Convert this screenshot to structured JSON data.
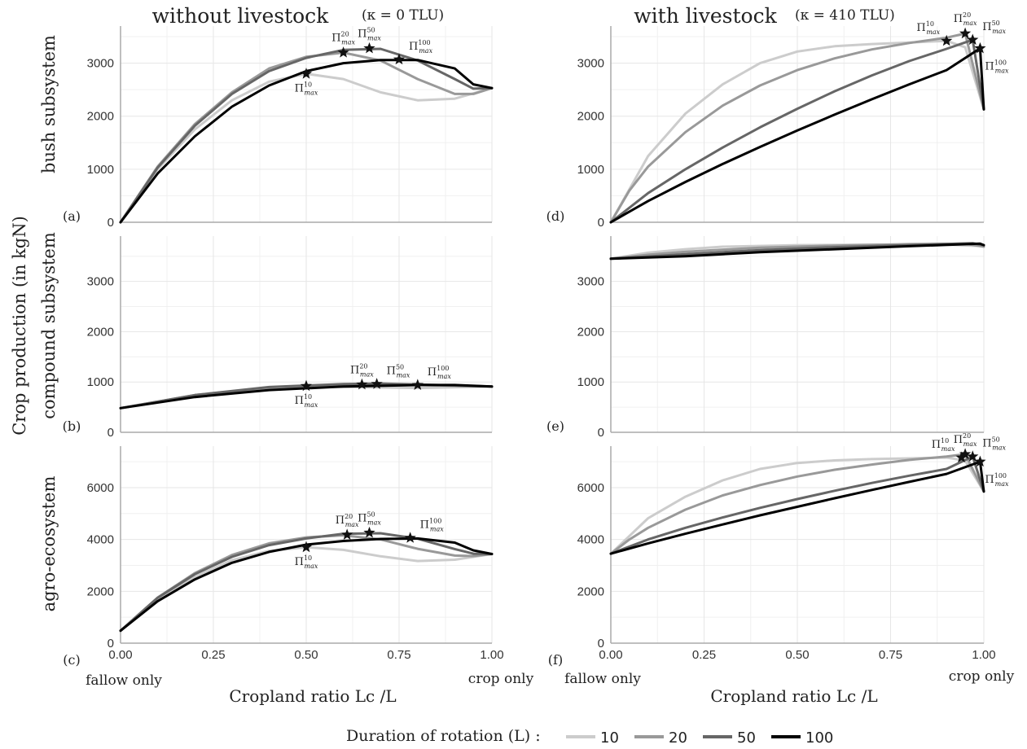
{
  "figure": {
    "col_titles": [
      {
        "text": "without livestock",
        "param": "(κ = 0 TLU)"
      },
      {
        "text": "with livestock",
        "param": "(κ = 410 TLU)"
      }
    ],
    "row_labels": [
      "bush subsystem",
      "compound subsystem",
      "agro-ecosystem"
    ],
    "ylabel": "Crop production (in kgN)",
    "xlabel": "Cropland ratio  Lc /L",
    "x_left_note": "fallow only",
    "x_right_note": "crop only",
    "legend_title": "Duration of rotation (L) :",
    "series_colors": {
      "10": "#cccccc",
      "20": "#999999",
      "50": "#666666",
      "100": "#000000"
    },
    "grid_color": "#e6e6e6",
    "axis_color": "#aaaaaa"
  },
  "legend": [
    {
      "label": "10",
      "color": "#cccccc"
    },
    {
      "label": "20",
      "color": "#999999"
    },
    {
      "label": "50",
      "color": "#666666"
    },
    {
      "label": "100",
      "color": "#000000"
    }
  ],
  "chart_data": [
    {
      "type": "line",
      "panel": "(a)",
      "xlim": [
        0,
        1
      ],
      "ylim": [
        0,
        3700
      ],
      "xticks": [
        "0.00",
        "0.25",
        "0.50",
        "0.75",
        "1.00"
      ],
      "yticks": [
        0,
        1000,
        2000,
        3000
      ],
      "show_xticks": false,
      "series": [
        {
          "name": "10",
          "color": "#cccccc",
          "x": [
            0,
            0.1,
            0.2,
            0.3,
            0.4,
            0.5,
            0.6,
            0.7,
            0.8,
            0.9,
            1
          ],
          "y": [
            0,
            1000,
            1750,
            2300,
            2650,
            2800,
            2700,
            2450,
            2300,
            2330,
            2530
          ]
        },
        {
          "name": "20",
          "color": "#999999",
          "x": [
            0,
            0.1,
            0.2,
            0.3,
            0.4,
            0.5,
            0.6,
            0.7,
            0.8,
            0.9,
            0.95,
            1
          ],
          "y": [
            0,
            1050,
            1850,
            2450,
            2900,
            3120,
            3200,
            3050,
            2700,
            2420,
            2420,
            2530
          ]
        },
        {
          "name": "50",
          "color": "#666666",
          "x": [
            0,
            0.1,
            0.2,
            0.3,
            0.4,
            0.5,
            0.6,
            0.7,
            0.8,
            0.9,
            0.95,
            1
          ],
          "y": [
            0,
            1030,
            1820,
            2420,
            2850,
            3100,
            3250,
            3270,
            3050,
            2700,
            2520,
            2530
          ]
        },
        {
          "name": "100",
          "color": "#000000",
          "x": [
            0,
            0.1,
            0.2,
            0.3,
            0.4,
            0.5,
            0.6,
            0.7,
            0.8,
            0.9,
            0.95,
            1
          ],
          "y": [
            0,
            920,
            1620,
            2180,
            2580,
            2850,
            3000,
            3060,
            3060,
            2900,
            2600,
            2530
          ]
        }
      ],
      "markers": [
        {
          "label": "Π",
          "sup": "10",
          "sub": "max",
          "x": 0.5,
          "y": 2800,
          "pos": "below"
        },
        {
          "label": "Π",
          "sup": "20",
          "sub": "max",
          "x": 0.6,
          "y": 3200,
          "pos": "above"
        },
        {
          "label": "Π",
          "sup": "50",
          "sub": "max",
          "x": 0.67,
          "y": 3280,
          "pos": "above"
        },
        {
          "label": "Π",
          "sup": "100",
          "sub": "max",
          "x": 0.75,
          "y": 3070,
          "pos": "aboveright"
        }
      ]
    },
    {
      "type": "line",
      "panel": "(b)",
      "xlim": [
        0,
        1
      ],
      "ylim": [
        0,
        3900
      ],
      "xticks": [
        "0.00",
        "0.25",
        "0.50",
        "0.75",
        "1.00"
      ],
      "yticks": [
        0,
        1000,
        2000,
        3000
      ],
      "show_xticks": false,
      "series": [
        {
          "name": "10",
          "color": "#cccccc",
          "x": [
            0,
            0.2,
            0.4,
            0.5,
            0.6,
            0.8,
            1
          ],
          "y": [
            480,
            720,
            870,
            920,
            900,
            880,
            910
          ]
        },
        {
          "name": "20",
          "color": "#999999",
          "x": [
            0,
            0.2,
            0.4,
            0.6,
            0.8,
            1
          ],
          "y": [
            480,
            740,
            890,
            950,
            940,
            910
          ]
        },
        {
          "name": "50",
          "color": "#666666",
          "x": [
            0,
            0.2,
            0.4,
            0.6,
            0.7,
            0.8,
            1
          ],
          "y": [
            480,
            740,
            900,
            960,
            970,
            950,
            910
          ]
        },
        {
          "name": "100",
          "color": "#000000",
          "x": [
            0,
            0.2,
            0.4,
            0.6,
            0.8,
            0.9,
            1
          ],
          "y": [
            480,
            700,
            840,
            910,
            940,
            940,
            910
          ]
        }
      ],
      "markers": [
        {
          "label": "Π",
          "sup": "10",
          "sub": "max",
          "x": 0.5,
          "y": 920,
          "pos": "below"
        },
        {
          "label": "Π",
          "sup": "20",
          "sub": "max",
          "x": 0.65,
          "y": 950,
          "pos": "above"
        },
        {
          "label": "Π",
          "sup": "50",
          "sub": "max",
          "x": 0.69,
          "y": 960,
          "pos": "aboveright"
        },
        {
          "label": "Π",
          "sup": "100",
          "sub": "max",
          "x": 0.8,
          "y": 940,
          "pos": "aboveright"
        }
      ]
    },
    {
      "type": "line",
      "panel": "(c)",
      "xlim": [
        0,
        1
      ],
      "ylim": [
        0,
        7600
      ],
      "xticks": [
        "0.00",
        "0.25",
        "0.50",
        "0.75",
        "1.00"
      ],
      "yticks": [
        0,
        2000,
        4000,
        6000
      ],
      "show_xticks": true,
      "series": [
        {
          "name": "10",
          "color": "#cccccc",
          "x": [
            0,
            0.1,
            0.2,
            0.3,
            0.4,
            0.5,
            0.6,
            0.7,
            0.8,
            0.9,
            1
          ],
          "y": [
            480,
            1700,
            2550,
            3200,
            3560,
            3700,
            3600,
            3350,
            3170,
            3220,
            3440
          ]
        },
        {
          "name": "20",
          "color": "#999999",
          "x": [
            0,
            0.1,
            0.2,
            0.3,
            0.4,
            0.5,
            0.6,
            0.7,
            0.8,
            0.9,
            0.95,
            1
          ],
          "y": [
            480,
            1760,
            2700,
            3400,
            3850,
            4080,
            4160,
            4000,
            3640,
            3380,
            3360,
            3440
          ]
        },
        {
          "name": "50",
          "color": "#666666",
          "x": [
            0,
            0.1,
            0.2,
            0.3,
            0.4,
            0.5,
            0.6,
            0.7,
            0.8,
            0.9,
            0.95,
            1
          ],
          "y": [
            480,
            1750,
            2660,
            3330,
            3780,
            4040,
            4220,
            4240,
            4030,
            3630,
            3450,
            3440
          ]
        },
        {
          "name": "100",
          "color": "#000000",
          "x": [
            0,
            0.1,
            0.2,
            0.3,
            0.4,
            0.5,
            0.6,
            0.7,
            0.8,
            0.9,
            0.95,
            1
          ],
          "y": [
            480,
            1620,
            2460,
            3100,
            3520,
            3800,
            3940,
            4020,
            4040,
            3880,
            3580,
            3440
          ]
        }
      ],
      "markers": [
        {
          "label": "Π",
          "sup": "10",
          "sub": "max",
          "x": 0.5,
          "y": 3700,
          "pos": "below"
        },
        {
          "label": "Π",
          "sup": "20",
          "sub": "max",
          "x": 0.61,
          "y": 4180,
          "pos": "above"
        },
        {
          "label": "Π",
          "sup": "50",
          "sub": "max",
          "x": 0.67,
          "y": 4260,
          "pos": "above"
        },
        {
          "label": "Π",
          "sup": "100",
          "sub": "max",
          "x": 0.78,
          "y": 4060,
          "pos": "aboveright"
        }
      ]
    },
    {
      "type": "line",
      "panel": "(d)",
      "xlim": [
        0,
        1
      ],
      "ylim": [
        0,
        3700
      ],
      "xticks": [
        "0.00",
        "0.25",
        "0.50",
        "0.75",
        "1.00"
      ],
      "yticks": [
        0,
        1000,
        2000,
        3000
      ],
      "show_xticks": false,
      "series": [
        {
          "name": "10",
          "color": "#cccccc",
          "x": [
            0,
            0.1,
            0.2,
            0.3,
            0.4,
            0.5,
            0.6,
            0.7,
            0.8,
            0.9,
            0.95,
            1
          ],
          "y": [
            0,
            1250,
            2050,
            2600,
            3000,
            3220,
            3320,
            3360,
            3390,
            3420,
            3300,
            2130
          ]
        },
        {
          "name": "20",
          "color": "#999999",
          "x": [
            0,
            0.05,
            0.1,
            0.2,
            0.3,
            0.4,
            0.5,
            0.6,
            0.7,
            0.8,
            0.9,
            0.95,
            1
          ],
          "y": [
            0,
            600,
            1050,
            1700,
            2200,
            2580,
            2870,
            3090,
            3260,
            3380,
            3480,
            3560,
            2130
          ]
        },
        {
          "name": "50",
          "color": "#666666",
          "x": [
            0,
            0.1,
            0.2,
            0.3,
            0.4,
            0.5,
            0.6,
            0.7,
            0.8,
            0.9,
            0.97,
            1
          ],
          "y": [
            0,
            550,
            1000,
            1410,
            1790,
            2140,
            2470,
            2770,
            3040,
            3270,
            3440,
            2130
          ]
        },
        {
          "name": "100",
          "color": "#000000",
          "x": [
            0,
            0.1,
            0.2,
            0.3,
            0.4,
            0.5,
            0.6,
            0.7,
            0.8,
            0.9,
            0.99,
            1
          ],
          "y": [
            0,
            400,
            760,
            1100,
            1420,
            1730,
            2030,
            2320,
            2600,
            2870,
            3280,
            2130
          ]
        }
      ],
      "markers": [
        {
          "label": "Π",
          "sup": "10",
          "sub": "max",
          "x": 0.9,
          "y": 3420,
          "pos": "aboveleft"
        },
        {
          "label": "Π",
          "sup": "20",
          "sub": "max",
          "x": 0.95,
          "y": 3560,
          "pos": "above"
        },
        {
          "label": "Π",
          "sup": "50",
          "sub": "max",
          "x": 0.97,
          "y": 3440,
          "pos": "aboveright"
        },
        {
          "label": "Π",
          "sup": "100",
          "sub": "max",
          "x": 0.99,
          "y": 3280,
          "pos": "belowright"
        }
      ]
    },
    {
      "type": "line",
      "panel": "(e)",
      "xlim": [
        0,
        1
      ],
      "ylim": [
        0,
        3900
      ],
      "xticks": [
        "0.00",
        "0.25",
        "0.50",
        "0.75",
        "1.00"
      ],
      "yticks": [
        0,
        1000,
        2000,
        3000
      ],
      "show_xticks": false,
      "series": [
        {
          "name": "10",
          "color": "#cccccc",
          "x": [
            0,
            0.1,
            0.2,
            0.3,
            0.5,
            0.7,
            0.9,
            1
          ],
          "y": [
            3450,
            3570,
            3640,
            3690,
            3720,
            3730,
            3730,
            3700
          ]
        },
        {
          "name": "20",
          "color": "#999999",
          "x": [
            0,
            0.1,
            0.2,
            0.4,
            0.6,
            0.8,
            0.95,
            1
          ],
          "y": [
            3450,
            3530,
            3590,
            3670,
            3710,
            3740,
            3750,
            3690
          ]
        },
        {
          "name": "50",
          "color": "#666666",
          "x": [
            0,
            0.2,
            0.4,
            0.6,
            0.8,
            0.97,
            1
          ],
          "y": [
            3450,
            3540,
            3620,
            3680,
            3720,
            3760,
            3720
          ]
        },
        {
          "name": "100",
          "color": "#000000",
          "x": [
            0,
            0.2,
            0.4,
            0.6,
            0.8,
            0.99,
            1
          ],
          "y": [
            3450,
            3500,
            3580,
            3640,
            3700,
            3750,
            3720
          ]
        }
      ],
      "markers": []
    },
    {
      "type": "line",
      "panel": "(f)",
      "xlim": [
        0,
        1
      ],
      "ylim": [
        0,
        7600
      ],
      "xticks": [
        "0.00",
        "0.25",
        "0.50",
        "0.75",
        "1.00"
      ],
      "yticks": [
        0,
        2000,
        4000,
        6000
      ],
      "show_xticks": true,
      "series": [
        {
          "name": "10",
          "color": "#cccccc",
          "x": [
            0,
            0.1,
            0.2,
            0.3,
            0.4,
            0.5,
            0.6,
            0.7,
            0.8,
            0.9,
            0.95,
            1
          ],
          "y": [
            3450,
            4820,
            5650,
            6280,
            6720,
            6950,
            7050,
            7100,
            7130,
            7160,
            7040,
            5850
          ]
        },
        {
          "name": "20",
          "color": "#999999",
          "x": [
            0,
            0.05,
            0.1,
            0.2,
            0.3,
            0.4,
            0.5,
            0.6,
            0.7,
            0.8,
            0.9,
            0.95,
            1
          ],
          "y": [
            3450,
            4000,
            4450,
            5150,
            5700,
            6100,
            6430,
            6690,
            6890,
            7070,
            7200,
            7290,
            5850
          ]
        },
        {
          "name": "50",
          "color": "#666666",
          "x": [
            0,
            0.1,
            0.2,
            0.3,
            0.4,
            0.5,
            0.6,
            0.7,
            0.8,
            0.9,
            0.97,
            1
          ],
          "y": [
            3450,
            4000,
            4450,
            4850,
            5220,
            5560,
            5880,
            6180,
            6460,
            6720,
            7200,
            5850
          ]
        },
        {
          "name": "100",
          "color": "#000000",
          "x": [
            0,
            0.1,
            0.2,
            0.3,
            0.4,
            0.5,
            0.6,
            0.7,
            0.8,
            0.9,
            0.99,
            1
          ],
          "y": [
            3450,
            3850,
            4220,
            4580,
            4930,
            5260,
            5590,
            5910,
            6220,
            6530,
            7000,
            5850
          ]
        }
      ],
      "markers": [
        {
          "label": "Π",
          "sup": "10",
          "sub": "max",
          "x": 0.94,
          "y": 7160,
          "pos": "aboveleft"
        },
        {
          "label": "Π",
          "sup": "20",
          "sub": "max",
          "x": 0.95,
          "y": 7290,
          "pos": "above"
        },
        {
          "label": "Π",
          "sup": "50",
          "sub": "max",
          "x": 0.97,
          "y": 7200,
          "pos": "aboveright"
        },
        {
          "label": "Π",
          "sup": "100",
          "sub": "max",
          "x": 0.99,
          "y": 7000,
          "pos": "belowright"
        }
      ]
    }
  ]
}
